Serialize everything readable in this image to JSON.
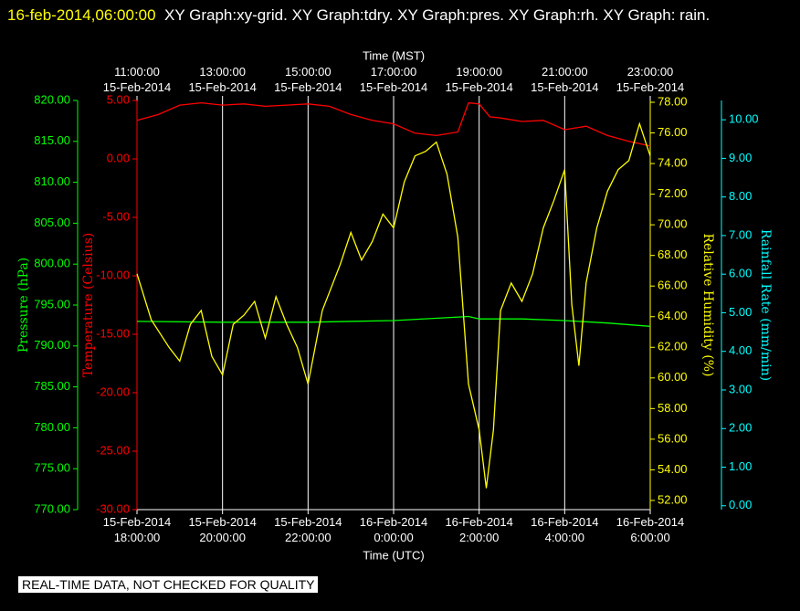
{
  "header": {
    "timestamp": "16-feb-2014,06:00:00",
    "title": "XY Graph:xy-grid.  XY Graph:tdry.  XY Graph:pres.  XY Graph:rh.  XY Graph: rain."
  },
  "chart_data": {
    "type": "line",
    "xlabel": "Time (UTC)",
    "x2label": "Time (MST)",
    "xlim": [
      "2014-02-15T18:00",
      "2014-02-16T06:00"
    ],
    "xticks": [
      {
        "value": "2014-02-15T18:00",
        "label": [
          "15-Feb-2014",
          "18:00:00"
        ]
      },
      {
        "value": "2014-02-15T20:00",
        "label": [
          "15-Feb-2014",
          "20:00:00"
        ]
      },
      {
        "value": "2014-02-15T22:00",
        "label": [
          "15-Feb-2014",
          "22:00:00"
        ]
      },
      {
        "value": "2014-02-16T00:00",
        "label": [
          "16-Feb-2014",
          "0:00:00"
        ]
      },
      {
        "value": "2014-02-16T02:00",
        "label": [
          "16-Feb-2014",
          "2:00:00"
        ]
      },
      {
        "value": "2014-02-16T04:00",
        "label": [
          "16-Feb-2014",
          "4:00:00"
        ]
      },
      {
        "value": "2014-02-16T06:00",
        "label": [
          "16-Feb-2014",
          "6:00:00"
        ]
      }
    ],
    "x2ticks": [
      {
        "value": "2014-02-15T18:00",
        "label": [
          "11:00:00",
          "15-Feb-2014"
        ]
      },
      {
        "value": "2014-02-15T20:00",
        "label": [
          "13:00:00",
          "15-Feb-2014"
        ]
      },
      {
        "value": "2014-02-15T22:00",
        "label": [
          "15:00:00",
          "15-Feb-2014"
        ]
      },
      {
        "value": "2014-02-16T00:00",
        "label": [
          "17:00:00",
          "15-Feb-2014"
        ]
      },
      {
        "value": "2014-02-16T02:00",
        "label": [
          "19:00:00",
          "15-Feb-2014"
        ]
      },
      {
        "value": "2014-02-16T04:00",
        "label": [
          "21:00:00",
          "15-Feb-2014"
        ]
      },
      {
        "value": "2014-02-16T06:00",
        "label": [
          "23:00:00",
          "15-Feb-2014"
        ]
      }
    ],
    "grid": true,
    "ylabel": "Temperature (Celsius)",
    "ycolor": "#ff0000",
    "ylim": [
      -30,
      5
    ],
    "yticks": [
      {
        "value": -30,
        "label": "-30.00"
      },
      {
        "value": -25,
        "label": "-25.00"
      },
      {
        "value": -20,
        "label": "-20.00"
      },
      {
        "value": -15,
        "label": "-15.00"
      },
      {
        "value": -10,
        "label": "-10.00"
      },
      {
        "value": -5,
        "label": "-5.00"
      },
      {
        "value": 0,
        "label": "0.00"
      },
      {
        "value": 5,
        "label": "5.00"
      }
    ],
    "y2label": "Relative Humidity (%)",
    "y2color": "#ffff00",
    "y2lim": [
      51.4,
      78.12
    ],
    "y2ticks": [
      {
        "value": 52,
        "label": "52.00"
      },
      {
        "value": 54,
        "label": "54.00"
      },
      {
        "value": 56,
        "label": "56.00"
      },
      {
        "value": 58,
        "label": "58.00"
      },
      {
        "value": 60,
        "label": "60.00"
      },
      {
        "value": 62,
        "label": "62.00"
      },
      {
        "value": 64,
        "label": "64.00"
      },
      {
        "value": 66,
        "label": "66.00"
      },
      {
        "value": 68,
        "label": "68.00"
      },
      {
        "value": 70,
        "label": "70.00"
      },
      {
        "value": 72,
        "label": "72.00"
      },
      {
        "value": 74,
        "label": "74.00"
      },
      {
        "value": 76,
        "label": "76.00"
      },
      {
        "value": 78,
        "label": "78.00"
      }
    ],
    "y3label": "Pressure (hPa)",
    "y3color": "#00ff00",
    "y3lim": [
      770,
      820
    ],
    "y3ticks": [
      {
        "value": 770,
        "label": "770.00"
      },
      {
        "value": 775,
        "label": "775.00"
      },
      {
        "value": 780,
        "label": "780.00"
      },
      {
        "value": 785,
        "label": "785.00"
      },
      {
        "value": 790,
        "label": "790.00"
      },
      {
        "value": 795,
        "label": "795.00"
      },
      {
        "value": 800,
        "label": "800.00"
      },
      {
        "value": 805,
        "label": "805.00"
      },
      {
        "value": 810,
        "label": "810.00"
      },
      {
        "value": 815,
        "label": "815.00"
      },
      {
        "value": 820,
        "label": "820.00"
      }
    ],
    "y4label": "Rainfall Rate (mm/min)",
    "y4color": "#00ffff",
    "y4lim": [
      -0.1,
      10.5
    ],
    "y4ticks": [
      {
        "value": 0,
        "label": "0.00"
      },
      {
        "value": 1,
        "label": "1.00"
      },
      {
        "value": 2,
        "label": "2.00"
      },
      {
        "value": 3,
        "label": "3.00"
      },
      {
        "value": 4,
        "label": "4.00"
      },
      {
        "value": 5,
        "label": "5.00"
      },
      {
        "value": 6,
        "label": "6.00"
      },
      {
        "value": 7,
        "label": "7.00"
      },
      {
        "value": 8,
        "label": "8.00"
      },
      {
        "value": 9,
        "label": "9.00"
      },
      {
        "value": 10,
        "label": "10.00"
      }
    ],
    "series": [
      {
        "color": "#00ff00",
        "axis": "y3",
        "x": [
          "2014-02-15T18:00",
          "2014-02-15T20:00",
          "2014-02-15T22:00",
          "2014-02-16T00:00",
          "2014-02-16T01:45",
          "2014-02-16T02:00",
          "2014-02-16T03:00",
          "2014-02-16T04:00",
          "2014-02-16T05:00",
          "2014-02-16T06:00"
        ],
        "values": [
          793.0,
          792.9,
          792.9,
          793.1,
          793.6,
          793.3,
          793.3,
          793.1,
          792.8,
          792.4
        ]
      },
      {
        "color": "#ff0000",
        "axis": "y",
        "x": [
          "2014-02-15T18:00",
          "2014-02-15T18:30",
          "2014-02-15T19:00",
          "2014-02-15T19:30",
          "2014-02-15T20:00",
          "2014-02-15T20:30",
          "2014-02-15T21:00",
          "2014-02-15T21:30",
          "2014-02-15T22:00",
          "2014-02-15T22:30",
          "2014-02-15T23:00",
          "2014-02-15T23:30",
          "2014-02-16T00:00",
          "2014-02-16T00:30",
          "2014-02-16T01:00",
          "2014-02-16T01:30",
          "2014-02-16T01:45",
          "2014-02-16T02:00",
          "2014-02-16T02:15",
          "2014-02-16T02:30",
          "2014-02-16T03:00",
          "2014-02-16T03:30",
          "2014-02-16T04:00",
          "2014-02-16T04:30",
          "2014-02-16T05:00",
          "2014-02-16T05:30",
          "2014-02-16T06:00"
        ],
        "values": [
          3.3,
          3.8,
          4.6,
          4.8,
          4.6,
          4.7,
          4.5,
          4.6,
          4.7,
          4.5,
          3.8,
          3.3,
          3.0,
          2.2,
          2.0,
          2.3,
          4.8,
          4.7,
          3.6,
          3.5,
          3.2,
          3.3,
          2.5,
          2.8,
          2.0,
          1.5,
          1.1
        ]
      },
      {
        "color": "#ffff00",
        "axis": "y2",
        "x": [
          "2014-02-15T18:00",
          "2014-02-15T18:20",
          "2014-02-15T18:45",
          "2014-02-15T19:00",
          "2014-02-15T19:15",
          "2014-02-15T19:30",
          "2014-02-15T19:45",
          "2014-02-15T20:00",
          "2014-02-15T20:15",
          "2014-02-15T20:30",
          "2014-02-15T20:45",
          "2014-02-15T21:00",
          "2014-02-15T21:15",
          "2014-02-15T21:30",
          "2014-02-15T21:45",
          "2014-02-15T22:00",
          "2014-02-15T22:20",
          "2014-02-15T22:45",
          "2014-02-15T23:00",
          "2014-02-15T23:15",
          "2014-02-15T23:30",
          "2014-02-15T23:45",
          "2014-02-16T00:00",
          "2014-02-16T00:15",
          "2014-02-16T00:30",
          "2014-02-16T00:45",
          "2014-02-16T01:00",
          "2014-02-16T01:15",
          "2014-02-16T01:30",
          "2014-02-16T01:45",
          "2014-02-16T02:00",
          "2014-02-16T02:10",
          "2014-02-16T02:20",
          "2014-02-16T02:30",
          "2014-02-16T02:45",
          "2014-02-16T03:00",
          "2014-02-16T03:15",
          "2014-02-16T03:30",
          "2014-02-16T03:45",
          "2014-02-16T04:00",
          "2014-02-16T04:10",
          "2014-02-16T04:20",
          "2014-02-16T04:30",
          "2014-02-16T04:45",
          "2014-02-16T05:00",
          "2014-02-16T05:15",
          "2014-02-16T05:30",
          "2014-02-16T05:45",
          "2014-02-16T06:00"
        ],
        "values": [
          66.8,
          63.8,
          62.0,
          61.1,
          63.5,
          64.4,
          61.4,
          60.2,
          63.5,
          64.1,
          65.0,
          62.6,
          65.3,
          63.5,
          62.0,
          59.6,
          64.4,
          67.4,
          69.5,
          67.7,
          68.9,
          70.7,
          69.8,
          72.8,
          74.5,
          74.8,
          75.4,
          73.3,
          69.2,
          59.6,
          56.6,
          52.8,
          56.6,
          64.4,
          66.2,
          65.0,
          66.8,
          69.8,
          71.6,
          73.6,
          64.8,
          60.8,
          66.2,
          69.8,
          72.2,
          73.6,
          74.2,
          76.6,
          74.5
        ]
      }
    ]
  },
  "footer": "REAL-TIME DATA, NOT CHECKED FOR QUALITY"
}
